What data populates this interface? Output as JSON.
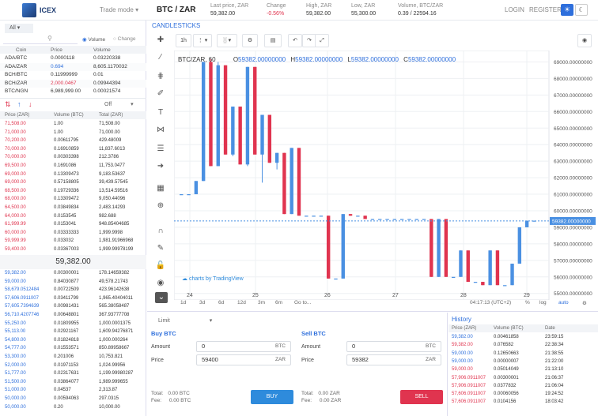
{
  "header": {
    "logo_text": "ICEX",
    "trade_mode": "Trade mode",
    "pair": "BTC / ZAR",
    "last_price_label": "Last price, ZAR",
    "last_price": "59,382.00",
    "change_label": "Change",
    "change": "-0.56%",
    "high_label": "High, ZAR",
    "high": "59,382.00",
    "low_label": "Low, ZAR",
    "low": "55,300.00",
    "volume_label": "Volume, BTC/ZAR",
    "volume": "0.39 / 22594.16",
    "login": "LOGIN",
    "register": "REGISTER",
    "colors": {
      "accent": "#2e6fdc",
      "up": "#2e8bdc",
      "down": "#e0344f"
    }
  },
  "market": {
    "tab": "All",
    "radio_volume": "Volume",
    "radio_change": "Change",
    "headers": [
      "Coin",
      "Price",
      "Volume"
    ],
    "rows": [
      {
        "coin": "ADA/BTC",
        "price": "0.0000118",
        "volume": "0.03220338",
        "color": "normal"
      },
      {
        "coin": "ADA/ZAR",
        "price": "0.694",
        "volume": "8,605.1170032",
        "color": "blue"
      },
      {
        "coin": "BCH/BTC",
        "price": "0.11999999",
        "volume": "0.01",
        "color": "normal"
      },
      {
        "coin": "BCH/ZAR",
        "price": "2,000.0467",
        "volume": "0.09944394",
        "color": "red"
      },
      {
        "coin": "BTC/NGN",
        "price": "6,989,999.00",
        "volume": "0.00021574",
        "color": "normal"
      }
    ]
  },
  "orderbook": {
    "filter": "Off",
    "headers": [
      "Price (ZAR)",
      "Volume (BTC)",
      "Total (ZAR)"
    ],
    "asks": [
      [
        "71,508.00",
        "1.00",
        "71,508.00"
      ],
      [
        "71,000.00",
        "1.00",
        "71,000.00"
      ],
      [
        "70,200.00",
        "0.00611795",
        "429.48009"
      ],
      [
        "70,000.00",
        "0.16910859",
        "11,837.6013"
      ],
      [
        "70,000.00",
        "0.00303398",
        "212.3786"
      ],
      [
        "69,500.00",
        "0.1691086",
        "11,753.0477"
      ],
      [
        "69,000.00",
        "0.13309473",
        "9,183.53637"
      ],
      [
        "69,000.00",
        "0.57158805",
        "39,439.57545"
      ],
      [
        "68,500.00",
        "0.19729336",
        "13,514.59516"
      ],
      [
        "68,000.00",
        "0.13309472",
        "9,050.44096"
      ],
      [
        "64,500.00",
        "0.03849834",
        "2,483.14293"
      ],
      [
        "64,000.00",
        "0.0153545",
        "982.688"
      ],
      [
        "61,999.99",
        "0.0153041",
        "948.85404685"
      ],
      [
        "60,000.00",
        "0.03333333",
        "1,999.9998"
      ],
      [
        "59,999.99",
        "0.033032",
        "1,981.91966968"
      ],
      [
        "59,400.00",
        "0.03367003",
        "1,999.99978199"
      ]
    ],
    "mid_price": "59,382.00",
    "bids": [
      [
        "59,382.00",
        "0.00300001",
        "178.14659382"
      ],
      [
        "59,000.00",
        "0.84030877",
        "49,578.21743"
      ],
      [
        "58,679.0512484",
        "0.00722509",
        "423.96142638"
      ],
      [
        "57,606.0911007",
        "0.03411799",
        "1,965.40404011"
      ],
      [
        "57,605.7394639",
        "0.00981431",
        "565.38058487"
      ],
      [
        "56,710.4207746",
        "0.00648801",
        "367.93777708"
      ],
      [
        "55,250.00",
        "0.01809955",
        "1,000.0001375"
      ],
      [
        "55,113.00",
        "0.02921167",
        "1,609.94276871"
      ],
      [
        "54,800.00",
        "0.01824818",
        "1,000.000264"
      ],
      [
        "54,777.00",
        "0.01553571",
        "850.89958667"
      ],
      [
        "53,300.00",
        "0.201006",
        "10,753.821"
      ],
      [
        "52,000.00",
        "0.01971153",
        "1,024.99956"
      ],
      [
        "51,777.00",
        "0.02317631",
        "1,199.99980287"
      ],
      [
        "51,500.00",
        "0.03864077",
        "1,989.999655"
      ],
      [
        "51,000.00",
        "0.04537",
        "2,313.87"
      ],
      [
        "50,000.00",
        "0.00594063",
        "297.0315"
      ],
      [
        "50,000.00",
        "0.20",
        "10,000.00"
      ]
    ]
  },
  "chart": {
    "tab": "CANDLESTICKS",
    "interval": "1h",
    "legend_symbol": "BTC/ZAR, 60",
    "legend_o_label": "O",
    "legend_o": "59382.00000000",
    "legend_h_label": "H",
    "legend_h": "59382.00000000",
    "legend_l_label": "L",
    "legend_l": "59382.00000000",
    "legend_c_label": "C",
    "legend_c": "59382.00000000",
    "watermark": "charts by TradingView",
    "price_ticks": [
      "69000.00000000",
      "68000.00000000",
      "67000.00000000",
      "66000.00000000",
      "65000.00000000",
      "64000.00000000",
      "63000.00000000",
      "62000.00000000",
      "61000.00000000",
      "60000.00000000",
      "59000.00000000",
      "58000.00000000",
      "57000.00000000",
      "56000.00000000",
      "55000.00000000"
    ],
    "current_price_tag": "59382.00000000",
    "time_ticks": [
      "24",
      "25",
      "26",
      "27",
      "28",
      "29"
    ],
    "range_buttons": [
      "1d",
      "3d",
      "6d",
      "12d",
      "3m",
      "6m",
      "Go to..."
    ],
    "clock": "04:17:13 (UTC+2)",
    "scale_buttons": [
      "%",
      "log",
      "auto"
    ]
  },
  "chart_data": {
    "type": "candlestick",
    "ylim": [
      54700,
      69500
    ],
    "candles": [
      {
        "o": 61000,
        "h": 61000,
        "l": 61000,
        "c": 61000
      },
      {
        "o": 61000,
        "h": 61000,
        "l": 61000,
        "c": 61000
      },
      {
        "o": 61000,
        "h": 61800,
        "l": 61000,
        "c": 61800
      },
      {
        "o": 61800,
        "h": 69000,
        "l": 61800,
        "c": 69000
      },
      {
        "o": 69000,
        "h": 69200,
        "l": 62700,
        "c": 62700
      },
      {
        "o": 62700,
        "h": 69000,
        "l": 62700,
        "c": 68800
      },
      {
        "o": 68800,
        "h": 68800,
        "l": 63400,
        "c": 63400
      },
      {
        "o": 63400,
        "h": 66300,
        "l": 63300,
        "c": 66300
      },
      {
        "o": 66300,
        "h": 66300,
        "l": 62800,
        "c": 62800
      },
      {
        "o": 62800,
        "h": 68700,
        "l": 62700,
        "c": 68700
      },
      {
        "o": 68700,
        "h": 68700,
        "l": 63400,
        "c": 63400
      },
      {
        "o": 63400,
        "h": 65800,
        "l": 61700,
        "c": 65800
      },
      {
        "o": 65800,
        "h": 65800,
        "l": 62900,
        "c": 62900
      },
      {
        "o": 62900,
        "h": 63500,
        "l": 62500,
        "c": 63500
      },
      {
        "o": 63500,
        "h": 63500,
        "l": 59800,
        "c": 59800
      },
      {
        "o": 59800,
        "h": 63800,
        "l": 59800,
        "c": 63800
      },
      {
        "o": 63800,
        "h": 63800,
        "l": 59700,
        "c": 59700
      },
      {
        "o": 59700,
        "h": 59700,
        "l": 59700,
        "c": 59700
      },
      {
        "o": 59700,
        "h": 59700,
        "l": 59700,
        "c": 59700
      },
      {
        "o": 59700,
        "h": 59700,
        "l": 59700,
        "c": 59700
      },
      {
        "o": 59700,
        "h": 59700,
        "l": 55900,
        "c": 55900
      },
      {
        "o": 55900,
        "h": 55900,
        "l": 55900,
        "c": 55900
      },
      {
        "o": 55900,
        "h": 59800,
        "l": 55900,
        "c": 59800
      },
      {
        "o": 59800,
        "h": 59800,
        "l": 59700,
        "c": 59700
      },
      {
        "o": 59700,
        "h": 59700,
        "l": 59700,
        "c": 59700
      },
      {
        "o": 59700,
        "h": 59700,
        "l": 59500,
        "c": 59500
      },
      {
        "o": 59500,
        "h": 59500,
        "l": 59500,
        "c": 59500
      },
      {
        "o": 59500,
        "h": 59500,
        "l": 59500,
        "c": 59500
      },
      {
        "o": 59500,
        "h": 59500,
        "l": 59500,
        "c": 59500
      },
      {
        "o": 59500,
        "h": 59500,
        "l": 59500,
        "c": 59500
      },
      {
        "o": 59500,
        "h": 59500,
        "l": 59500,
        "c": 59500
      },
      {
        "o": 59500,
        "h": 59500,
        "l": 59500,
        "c": 59500
      },
      {
        "o": 59500,
        "h": 59500,
        "l": 59500,
        "c": 59500
      },
      {
        "o": 59500,
        "h": 59500,
        "l": 59500,
        "c": 59500
      },
      {
        "o": 59500,
        "h": 59500,
        "l": 56000,
        "c": 56000
      },
      {
        "o": 56000,
        "h": 59500,
        "l": 56000,
        "c": 59500
      },
      {
        "o": 59500,
        "h": 59500,
        "l": 56000,
        "c": 56000
      },
      {
        "o": 56000,
        "h": 56000,
        "l": 56000,
        "c": 56000
      },
      {
        "o": 56000,
        "h": 57600,
        "l": 56000,
        "c": 57600
      },
      {
        "o": 57600,
        "h": 57600,
        "l": 55700,
        "c": 55700
      },
      {
        "o": 55700,
        "h": 55700,
        "l": 55700,
        "c": 55700
      },
      {
        "o": 55700,
        "h": 55700,
        "l": 55500,
        "c": 55500
      },
      {
        "o": 55500,
        "h": 57600,
        "l": 55500,
        "c": 57600
      },
      {
        "o": 57600,
        "h": 57600,
        "l": 55500,
        "c": 55500
      },
      {
        "o": 55500,
        "h": 55500,
        "l": 55500,
        "c": 55500
      },
      {
        "o": 55500,
        "h": 56800,
        "l": 55500,
        "c": 56800
      },
      {
        "o": 56800,
        "h": 59000,
        "l": 56800,
        "c": 59000
      },
      {
        "o": 59000,
        "h": 59400,
        "l": 59000,
        "c": 59400
      },
      {
        "o": 59400,
        "h": 59400,
        "l": 59400,
        "c": 59400
      }
    ]
  },
  "orderform": {
    "type": "Limit",
    "buy_title": "Buy BTC",
    "sell_title": "Sell BTC",
    "amount_label": "Amount",
    "price_label": "Price",
    "buy_amount": "0",
    "buy_amount_cur": "BTC",
    "buy_price": "59400",
    "buy_price_cur": "ZAR",
    "sell_amount": "0",
    "sell_amount_cur": "BTC",
    "sell_price": "59382",
    "sell_price_cur": "ZAR",
    "total_label": "Total:",
    "fee_label": "Fee:",
    "buy_total": "0.00 BTC",
    "buy_fee": "0.00 BTC",
    "sell_total": "0.00 ZAR",
    "sell_fee": "0.00 ZAR",
    "buy_button": "BUY",
    "sell_button": "SELL"
  },
  "history": {
    "title": "History",
    "headers": [
      "Price (ZAR)",
      "Volume (BTC)",
      "Date"
    ],
    "rows": [
      {
        "price": "59,382.00",
        "volume": "0.00461858",
        "date": "23:59:15",
        "side": "buy"
      },
      {
        "price": "59,382.00",
        "volume": "0.076582",
        "date": "22:38:34",
        "side": "sell"
      },
      {
        "price": "59,000.00",
        "volume": "0.12650663",
        "date": "21:38:55",
        "side": "buy"
      },
      {
        "price": "59,000.00",
        "volume": "0.00000007",
        "date": "21:22:00",
        "side": "buy"
      },
      {
        "price": "59,000.00",
        "volume": "0.05014049",
        "date": "21:13:10",
        "side": "sell"
      },
      {
        "price": "57,906.0911007",
        "volume": "0.00300001",
        "date": "21:06:37",
        "side": "sell"
      },
      {
        "price": "57,906.0911007",
        "volume": "0.0377832",
        "date": "21:06:04",
        "side": "sell"
      },
      {
        "price": "57,606.0911007",
        "volume": "0.00060056",
        "date": "19:24:52",
        "side": "sell"
      },
      {
        "price": "57,606.0911007",
        "volume": "0.0104156",
        "date": "18:03:42",
        "side": "sell"
      }
    ]
  }
}
